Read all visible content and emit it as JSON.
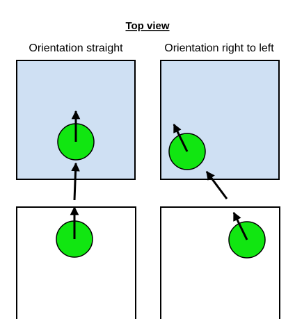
{
  "title": "Top view",
  "columns": [
    {
      "label": "Orientation straight",
      "orientation": "straight"
    },
    {
      "label": "Orientation right to left",
      "orientation": "right-to-left"
    }
  ],
  "colors": {
    "top_region_fill": "#cfe0f3",
    "bottom_region_fill": "#ffffff",
    "outline": "#000000",
    "robot_fill": "#11e611",
    "arrow": "#000000"
  }
}
